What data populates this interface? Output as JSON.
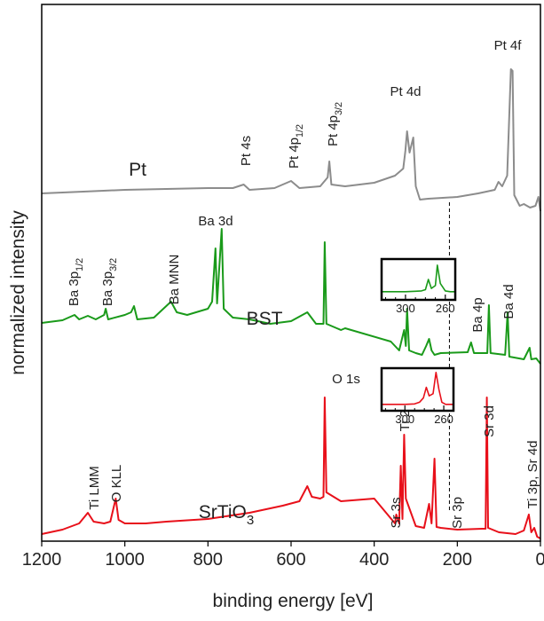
{
  "chart_data": [
    {
      "type": "line",
      "x_label": "binding energy [eV]",
      "y_label": "normalized intensity",
      "xlim": [
        1200,
        0
      ],
      "xticks": [
        1200,
        1000,
        800,
        600,
        400,
        200,
        0
      ],
      "ylim": [
        0,
        605
      ],
      "vline": 219,
      "series": [
        {
          "name": "Pt",
          "color": "#8c8c8c",
          "x": [
            1200,
            1100,
            1000,
            900,
            800,
            740,
            714,
            700,
            640,
            600,
            580,
            530,
            512,
            508,
            503,
            470,
            400,
            350,
            330,
            325,
            321,
            315,
            306,
            300,
            290,
            270,
            200,
            150,
            110,
            101,
            92,
            80,
            71,
            67,
            63,
            50,
            40,
            25,
            12,
            5,
            0
          ],
          "values": [
            392,
            394,
            396,
            397,
            398,
            398,
            402,
            396,
            398,
            406,
            398,
            400,
            410,
            428,
            402,
            400,
            404,
            412,
            420,
            440,
            462,
            438,
            455,
            400,
            385,
            386,
            388,
            392,
            396,
            405,
            400,
            412,
            532,
            530,
            390,
            378,
            380,
            376,
            378,
            388,
            372
          ]
        },
        {
          "name": "BST",
          "color": "#1a9a1a",
          "x": [
            1200,
            1150,
            1121,
            1110,
            1089,
            1070,
            1050,
            1046,
            1040,
            1000,
            985,
            978,
            970,
            930,
            889,
            875,
            850,
            800,
            790,
            782,
            778,
            767,
            762,
            740,
            700,
            650,
            600,
            561,
            540,
            522,
            519,
            515,
            490,
            480,
            470,
            360,
            340,
            328,
            324,
            321,
            316,
            300,
            285,
            275,
            268,
            262,
            255,
            240,
            175,
            167,
            160,
            128,
            124,
            120,
            85,
            79,
            75,
            40,
            26,
            22,
            10,
            0
          ],
          "values": [
            246,
            249,
            255,
            250,
            254,
            250,
            255,
            262,
            250,
            255,
            258,
            265,
            250,
            252,
            270,
            258,
            255,
            262,
            270,
            330,
            268,
            352,
            262,
            252,
            250,
            245,
            248,
            258,
            245,
            245,
            337,
            245,
            240,
            238,
            240,
            225,
            215,
            238,
            220,
            262,
            215,
            212,
            210,
            220,
            228,
            215,
            210,
            212,
            213,
            224,
            212,
            212,
            266,
            212,
            210,
            258,
            208,
            205,
            218,
            205,
            206,
            200
          ]
        },
        {
          "name": "SrTiO3",
          "color": "#e8101a",
          "x": [
            1200,
            1150,
            1110,
            1089,
            1075,
            1050,
            1035,
            1022,
            1015,
            1000,
            950,
            900,
            800,
            700,
            620,
            580,
            561,
            550,
            530,
            522,
            519,
            515,
            480,
            400,
            350,
            347,
            340,
            336,
            332,
            328,
            324,
            300,
            280,
            268,
            262,
            255,
            250,
            240,
            200,
            140,
            132,
            129,
            126,
            100,
            60,
            40,
            28,
            22,
            15,
            8,
            0
          ],
          "values": [
            8,
            13,
            20,
            32,
            22,
            20,
            22,
            48,
            24,
            20,
            20,
            22,
            25,
            32,
            40,
            45,
            62,
            50,
            48,
            50,
            162,
            55,
            45,
            48,
            20,
            30,
            20,
            85,
            25,
            120,
            48,
            17,
            15,
            42,
            20,
            93,
            16,
            15,
            13,
            14,
            14,
            162,
            15,
            10,
            8,
            12,
            30,
            10,
            15,
            5,
            3
          ]
        }
      ],
      "annotations": [
        {
          "text": "Pt"
        },
        {
          "text": "BST"
        },
        {
          "text": "SrTiO",
          "sub": "3"
        },
        {
          "text": "Pt 4s"
        },
        {
          "text": "Pt 4p",
          "sub": "1/2"
        },
        {
          "text": "Pt 4p",
          "sub": "3/2"
        },
        {
          "text": "Pt 4d"
        },
        {
          "text": "Pt 4f"
        },
        {
          "text": "Ba 3p",
          "sub": "1/2"
        },
        {
          "text": "Ba 3p",
          "sub": "3/2"
        },
        {
          "text": "Ba MNN"
        },
        {
          "text": "Ba 3d"
        },
        {
          "text": "Ba 4p"
        },
        {
          "text": "Ba 4d"
        },
        {
          "text": "O 1s"
        },
        {
          "text": "Ti LMM"
        },
        {
          "text": "O KLL"
        },
        {
          "text": "Ti 2p"
        },
        {
          "text": "Sr 3s"
        },
        {
          "text": "Sr 3p"
        },
        {
          "text": "Sr 3d"
        },
        {
          "text": "Ti 3p, Sr 4d"
        }
      ]
    },
    {
      "type": "line",
      "xlim": [
        324,
        250
      ],
      "xticks": [
        300,
        260
      ],
      "xminorticks": [
        320,
        310,
        290,
        280,
        270,
        250
      ],
      "ylim": [
        0,
        100
      ],
      "series": [
        {
          "name": "BST",
          "color": "#1a9a1a",
          "x": [
            324,
            300,
            290,
            284,
            280,
            277,
            274,
            270,
            268,
            265,
            260,
            255,
            250
          ],
          "values": [
            20,
            20,
            21,
            22,
            25,
            50,
            28,
            35,
            85,
            40,
            22,
            20,
            20
          ]
        }
      ]
    },
    {
      "type": "line",
      "xlim": [
        324,
        250
      ],
      "xticks": [
        300,
        260
      ],
      "xminorticks": [
        320,
        310,
        290,
        280,
        270,
        250
      ],
      "ylim": [
        0,
        100
      ],
      "series": [
        {
          "name": "SrTiO3",
          "color": "#e8101a",
          "x": [
            324,
            300,
            290,
            285,
            281,
            278,
            275,
            271,
            268,
            265,
            262,
            258,
            250
          ],
          "values": [
            15,
            15,
            16,
            20,
            30,
            55,
            35,
            40,
            90,
            50,
            20,
            15,
            15
          ]
        }
      ]
    }
  ]
}
